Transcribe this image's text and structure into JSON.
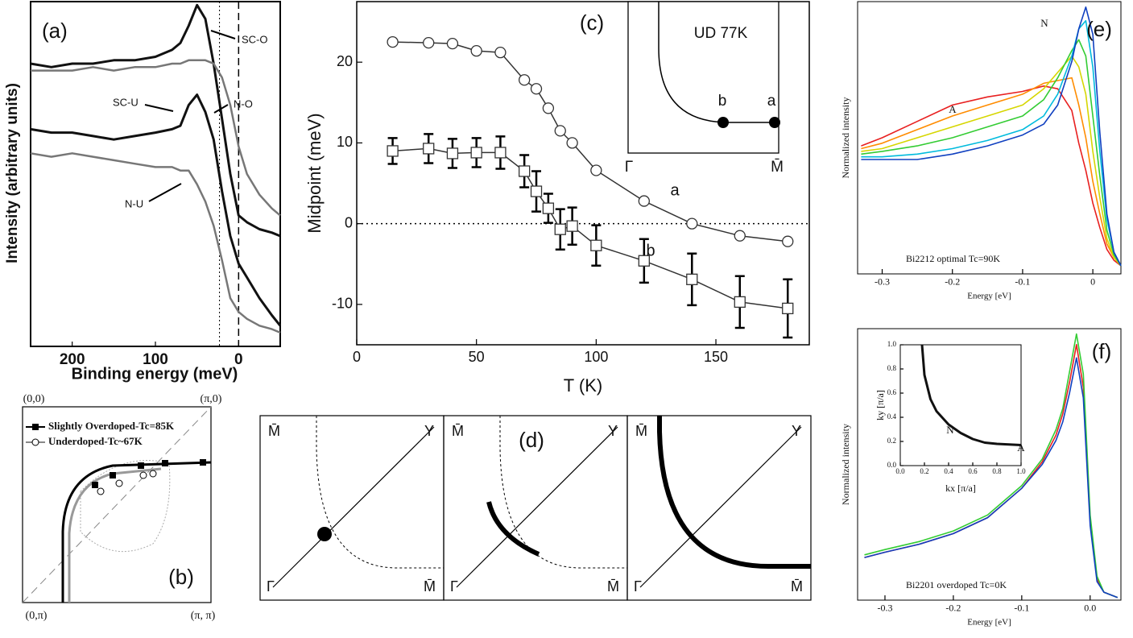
{
  "chart_data": [
    {
      "type": "line",
      "label": "(a)",
      "xlabel": "Binding energy (meV)",
      "ylabel": "Intensity (arbitrary units)",
      "xlim": [
        250,
        -50
      ],
      "ylim": [
        0,
        100
      ],
      "xticks": [
        200,
        100,
        0
      ],
      "reference_lines": [
        23,
        0
      ],
      "x": [
        250,
        225,
        200,
        175,
        150,
        125,
        100,
        80,
        70,
        60,
        50,
        40,
        30,
        20,
        10,
        0,
        -10,
        -25,
        -40,
        -50
      ],
      "series": [
        {
          "name": "SC-O",
          "color": "#111111",
          "values": [
            82,
            81,
            82,
            82,
            83,
            83,
            84,
            86,
            88,
            93,
            99,
            95,
            82,
            66,
            50,
            38,
            36,
            34,
            33,
            32
          ]
        },
        {
          "name": "N-O",
          "color": "#777777",
          "values": [
            80,
            80,
            80,
            81,
            80,
            81,
            81,
            82,
            82,
            83,
            83,
            83,
            82,
            78,
            70,
            58,
            50,
            44,
            40,
            38
          ]
        },
        {
          "name": "SC-U",
          "color": "#111111",
          "values": [
            63,
            62,
            62,
            61,
            60,
            61,
            62,
            63,
            64,
            70,
            73,
            68,
            60,
            45,
            32,
            24,
            20,
            14,
            9,
            6
          ]
        },
        {
          "name": "N-U",
          "color": "#777777",
          "values": [
            56,
            55,
            56,
            55,
            54,
            53,
            52,
            52,
            51,
            51,
            47,
            42,
            35,
            25,
            14,
            10,
            8,
            6,
            5,
            4
          ]
        }
      ]
    },
    {
      "type": "diagram",
      "label": "(b)",
      "corners": [
        "(0,0)",
        "(π,0)",
        "(0,π)",
        "(π, π)"
      ],
      "legend": [
        "Slightly Overdoped-Tc=85K",
        "Underdoped-Tc~67K"
      ]
    },
    {
      "type": "line",
      "label": "(c)",
      "xlabel": "T (K)",
      "ylabel": "Midpoint (meV)",
      "xlim": [
        0,
        189
      ],
      "ylim": [
        -15,
        27.5
      ],
      "xticks": [
        0,
        50,
        100,
        150
      ],
      "yticks": [
        -10,
        0,
        10,
        20
      ],
      "reference_line": 0,
      "x": [
        15,
        30,
        40,
        50,
        60,
        70,
        75,
        80,
        85,
        90,
        100,
        120,
        140,
        160,
        180
      ],
      "series": [
        {
          "name": "a",
          "color": "#333333",
          "marker": "circle",
          "values": [
            22.5,
            22.4,
            22.3,
            21.4,
            21.2,
            17.8,
            16.7,
            14.3,
            11.5,
            10,
            6.6,
            2.8,
            0,
            -1.5,
            -2.2
          ]
        },
        {
          "name": "b",
          "color": "#333333",
          "marker": "square",
          "values": [
            9,
            9.3,
            8.7,
            8.8,
            8.8,
            6.5,
            4,
            1.9,
            -0.7,
            -0.3,
            -2.7,
            -4.6,
            -6.9,
            -9.7,
            -10.5
          ],
          "errors": [
            1.6,
            1.8,
            1.8,
            1.8,
            2,
            2,
            2.5,
            1.8,
            2.5,
            2.3,
            2.5,
            2.7,
            3.2,
            3.2,
            3.6
          ]
        }
      ],
      "inset": {
        "title": "UD 77K",
        "labels": [
          "b",
          "a",
          "Γ",
          "M̄"
        ]
      }
    },
    {
      "type": "diagram",
      "label": "(d)",
      "panels": [
        {
          "labels": [
            "M̄",
            "Y",
            "Γ",
            "M̄"
          ]
        },
        {
          "labels": [
            "M̄",
            "Y",
            "Γ",
            "M̄"
          ]
        },
        {
          "labels": [
            "M̄",
            "Y",
            "Γ",
            "M̄"
          ]
        }
      ]
    },
    {
      "type": "line",
      "label": "(e)",
      "xlabel": "Energy [eV]",
      "ylabel": "Normalized intensity",
      "note": "Bi2212 optimal Tc=90K",
      "annotations": [
        "A",
        "N"
      ],
      "xlim": [
        -0.335,
        0.04
      ],
      "ylim": [
        0,
        1
      ],
      "xticks": [
        -0.3,
        -0.2,
        -0.1,
        0
      ],
      "x": [
        -0.33,
        -0.3,
        -0.25,
        -0.2,
        -0.15,
        -0.1,
        -0.07,
        -0.05,
        -0.03,
        -0.02,
        -0.01,
        0,
        0.01,
        0.02,
        0.03,
        0.04
      ],
      "series": [
        {
          "color": "#e82020",
          "values": [
            0.47,
            0.5,
            0.56,
            0.62,
            0.65,
            0.67,
            0.69,
            0.68,
            0.6,
            0.48,
            0.38,
            0.26,
            0.17,
            0.09,
            0.05,
            0.03
          ]
        },
        {
          "color": "#ff8c00",
          "values": [
            0.46,
            0.48,
            0.53,
            0.58,
            0.62,
            0.66,
            0.7,
            0.71,
            0.72,
            0.62,
            0.5,
            0.34,
            0.22,
            0.11,
            0.06,
            0.03
          ]
        },
        {
          "color": "#d6d600",
          "values": [
            0.45,
            0.46,
            0.5,
            0.54,
            0.58,
            0.62,
            0.68,
            0.74,
            0.8,
            0.76,
            0.66,
            0.45,
            0.28,
            0.13,
            0.06,
            0.03
          ]
        },
        {
          "color": "#33cc33",
          "values": [
            0.44,
            0.45,
            0.47,
            0.5,
            0.54,
            0.58,
            0.64,
            0.72,
            0.82,
            0.86,
            0.8,
            0.58,
            0.36,
            0.16,
            0.07,
            0.03
          ]
        },
        {
          "color": "#00bbdd",
          "values": [
            0.43,
            0.43,
            0.44,
            0.46,
            0.49,
            0.53,
            0.58,
            0.66,
            0.8,
            0.9,
            0.93,
            0.76,
            0.45,
            0.2,
            0.08,
            0.03
          ]
        },
        {
          "color": "#1040c0",
          "values": [
            0.42,
            0.42,
            0.42,
            0.44,
            0.47,
            0.51,
            0.55,
            0.62,
            0.78,
            0.9,
            0.98,
            0.88,
            0.52,
            0.22,
            0.08,
            0.03
          ]
        }
      ]
    },
    {
      "type": "line",
      "label": "(f)",
      "xlabel": "Energy [eV]",
      "ylabel": "Normalized intensity",
      "note": "Bi2201 overdoped Tc=0K",
      "xlim": [
        -0.34,
        0.045
      ],
      "ylim": [
        0,
        1.02
      ],
      "xticks": [
        -0.3,
        -0.2,
        -0.1,
        {
          "value": 0,
          "label": "0.0"
        }
      ],
      "x": [
        -0.33,
        -0.3,
        -0.25,
        -0.2,
        -0.15,
        -0.1,
        -0.07,
        -0.05,
        -0.04,
        -0.03,
        -0.02,
        -0.01,
        0,
        0.01,
        0.02,
        0.04
      ],
      "series": [
        {
          "color": "#e82020",
          "values": [
            0.16,
            0.18,
            0.21,
            0.25,
            0.31,
            0.42,
            0.52,
            0.62,
            0.7,
            0.82,
            0.96,
            0.8,
            0.3,
            0.08,
            0.03,
            0.01
          ]
        },
        {
          "color": "#33cc33",
          "values": [
            0.17,
            0.19,
            0.22,
            0.26,
            0.32,
            0.43,
            0.53,
            0.64,
            0.72,
            0.86,
            1.0,
            0.85,
            0.32,
            0.09,
            0.03,
            0.01
          ]
        },
        {
          "color": "#1040c0",
          "values": [
            0.16,
            0.18,
            0.21,
            0.25,
            0.31,
            0.42,
            0.51,
            0.6,
            0.67,
            0.78,
            0.91,
            0.76,
            0.28,
            0.07,
            0.03,
            0.01
          ]
        }
      ],
      "inset": {
        "xlabel": "kx [π/a]",
        "ylabel": "ky [π/a]",
        "annotations": [
          "N",
          "A"
        ],
        "xlim": [
          0,
          1
        ],
        "ylim": [
          0,
          1
        ],
        "xticks": [
          {
            "value": 0,
            "label": "0.0"
          },
          0.2,
          0.4,
          0.6,
          0.8,
          {
            "value": 1,
            "label": "1.0"
          }
        ],
        "yticks": [
          {
            "value": 0,
            "label": "0.0"
          },
          0.2,
          0.4,
          0.6,
          0.8,
          {
            "value": 1,
            "label": "1.0"
          }
        ],
        "x": [
          0.18,
          0.2,
          0.25,
          0.3,
          0.4,
          0.5,
          0.6,
          0.7,
          0.8,
          1.0
        ],
        "series": [
          {
            "color": "#111111",
            "values": [
              1.0,
              0.75,
              0.55,
              0.45,
              0.34,
              0.27,
              0.22,
              0.19,
              0.18,
              0.17
            ]
          }
        ]
      }
    }
  ]
}
